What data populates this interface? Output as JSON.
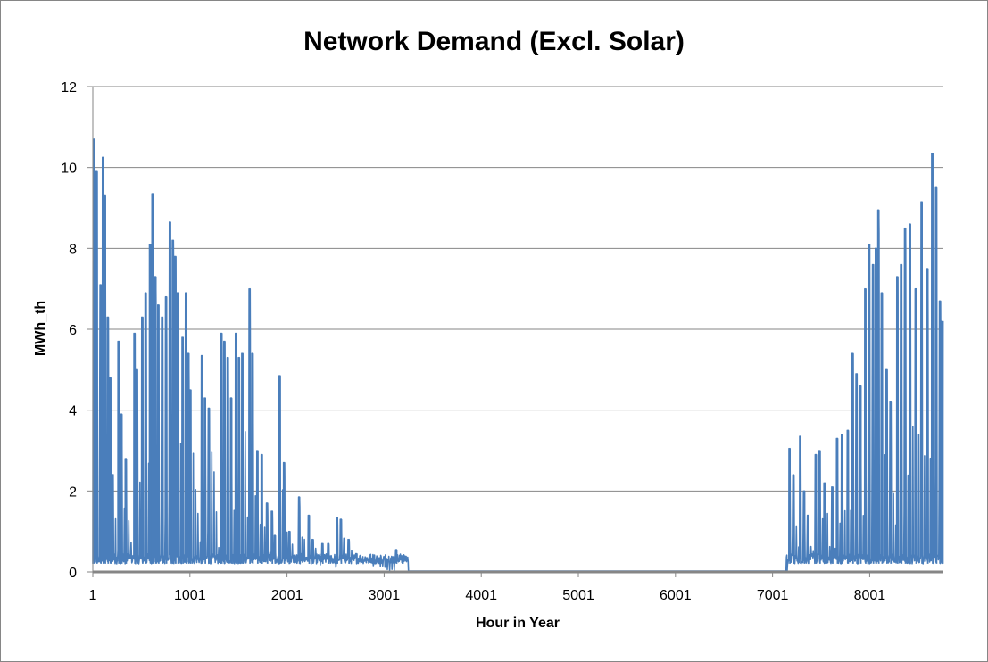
{
  "chart_data": {
    "type": "line",
    "title": "Network Demand (Excl. Solar)",
    "xlabel": "Hour in Year",
    "ylabel": "MWh_th",
    "xlim": [
      1,
      8760
    ],
    "ylim": [
      0,
      12
    ],
    "x_ticks": [
      1,
      1001,
      2001,
      3001,
      4001,
      5001,
      6001,
      7001,
      8001
    ],
    "x_tick_labels": [
      "1",
      "1001",
      "2001",
      "3001",
      "4001",
      "5001",
      "6001",
      "7001",
      "8001"
    ],
    "y_ticks": [
      0,
      2,
      4,
      6,
      8,
      10,
      12
    ],
    "y_tick_labels": [
      "0",
      "2",
      "4",
      "6",
      "8",
      "10",
      "12"
    ],
    "grid": "horizontal",
    "legend": "none",
    "colors": {
      "series": "#4a7ebb",
      "grid": "#868686",
      "axis": "#868686"
    },
    "series": [
      {
        "name": "",
        "baseline": 0.2,
        "peaks": [
          {
            "x": 15,
            "y": 10.7
          },
          {
            "x": 45,
            "y": 9.9
          },
          {
            "x": 85,
            "y": 7.1
          },
          {
            "x": 110,
            "y": 10.25
          },
          {
            "x": 130,
            "y": 9.3
          },
          {
            "x": 160,
            "y": 6.3
          },
          {
            "x": 185,
            "y": 4.8
          },
          {
            "x": 270,
            "y": 5.7
          },
          {
            "x": 300,
            "y": 3.9
          },
          {
            "x": 345,
            "y": 2.8
          },
          {
            "x": 435,
            "y": 5.9
          },
          {
            "x": 460,
            "y": 5.0
          },
          {
            "x": 515,
            "y": 6.3
          },
          {
            "x": 550,
            "y": 6.9
          },
          {
            "x": 595,
            "y": 8.1
          },
          {
            "x": 620,
            "y": 9.35
          },
          {
            "x": 650,
            "y": 7.3
          },
          {
            "x": 680,
            "y": 6.6
          },
          {
            "x": 720,
            "y": 6.3
          },
          {
            "x": 760,
            "y": 6.8
          },
          {
            "x": 800,
            "y": 8.65
          },
          {
            "x": 830,
            "y": 8.2
          },
          {
            "x": 855,
            "y": 7.8
          },
          {
            "x": 880,
            "y": 6.9
          },
          {
            "x": 930,
            "y": 5.8
          },
          {
            "x": 965,
            "y": 6.9
          },
          {
            "x": 990,
            "y": 5.4
          },
          {
            "x": 1010,
            "y": 4.5
          },
          {
            "x": 1130,
            "y": 5.35
          },
          {
            "x": 1160,
            "y": 4.3
          },
          {
            "x": 1200,
            "y": 4.05
          },
          {
            "x": 1330,
            "y": 5.9
          },
          {
            "x": 1360,
            "y": 5.7
          },
          {
            "x": 1395,
            "y": 5.3
          },
          {
            "x": 1430,
            "y": 4.3
          },
          {
            "x": 1480,
            "y": 5.9
          },
          {
            "x": 1510,
            "y": 5.3
          },
          {
            "x": 1545,
            "y": 5.4
          },
          {
            "x": 1620,
            "y": 7.0
          },
          {
            "x": 1650,
            "y": 5.4
          },
          {
            "x": 1700,
            "y": 3.0
          },
          {
            "x": 1745,
            "y": 2.9
          },
          {
            "x": 1800,
            "y": 1.7
          },
          {
            "x": 1850,
            "y": 1.5
          },
          {
            "x": 1880,
            "y": 0.9
          },
          {
            "x": 1930,
            "y": 4.85
          },
          {
            "x": 1975,
            "y": 2.7
          },
          {
            "x": 2030,
            "y": 1.0
          },
          {
            "x": 2130,
            "y": 1.85
          },
          {
            "x": 2230,
            "y": 1.4
          },
          {
            "x": 2270,
            "y": 0.8
          },
          {
            "x": 2370,
            "y": 0.7
          },
          {
            "x": 2430,
            "y": 0.7
          },
          {
            "x": 2520,
            "y": 1.35
          },
          {
            "x": 2560,
            "y": 1.3
          },
          {
            "x": 2640,
            "y": 0.8
          },
          {
            "x": 2720,
            "y": 0.45
          },
          {
            "x": 3130,
            "y": 0.55
          },
          {
            "x": 3190,
            "y": 0.4
          },
          {
            "x": 7180,
            "y": 3.05
          },
          {
            "x": 7220,
            "y": 2.4
          },
          {
            "x": 7290,
            "y": 3.35
          },
          {
            "x": 7330,
            "y": 2.0
          },
          {
            "x": 7370,
            "y": 1.4
          },
          {
            "x": 7450,
            "y": 2.9
          },
          {
            "x": 7490,
            "y": 3.0
          },
          {
            "x": 7540,
            "y": 2.2
          },
          {
            "x": 7620,
            "y": 2.1
          },
          {
            "x": 7670,
            "y": 3.3
          },
          {
            "x": 7720,
            "y": 3.4
          },
          {
            "x": 7780,
            "y": 3.5
          },
          {
            "x": 7830,
            "y": 5.4
          },
          {
            "x": 7870,
            "y": 4.9
          },
          {
            "x": 7910,
            "y": 4.6
          },
          {
            "x": 7960,
            "y": 7.0
          },
          {
            "x": 8000,
            "y": 8.1
          },
          {
            "x": 8040,
            "y": 7.6
          },
          {
            "x": 8070,
            "y": 8.0
          },
          {
            "x": 8095,
            "y": 8.95
          },
          {
            "x": 8130,
            "y": 6.9
          },
          {
            "x": 8180,
            "y": 5.0
          },
          {
            "x": 8220,
            "y": 4.2
          },
          {
            "x": 8290,
            "y": 7.3
          },
          {
            "x": 8330,
            "y": 7.6
          },
          {
            "x": 8370,
            "y": 8.5
          },
          {
            "x": 8420,
            "y": 8.6
          },
          {
            "x": 8480,
            "y": 7.0
          },
          {
            "x": 8540,
            "y": 9.15
          },
          {
            "x": 8600,
            "y": 7.5
          },
          {
            "x": 8650,
            "y": 10.35
          },
          {
            "x": 8690,
            "y": 9.5
          },
          {
            "x": 8730,
            "y": 6.7
          },
          {
            "x": 8755,
            "y": 6.2
          }
        ],
        "zero_range": [
          3250,
          7140
        ]
      }
    ]
  }
}
